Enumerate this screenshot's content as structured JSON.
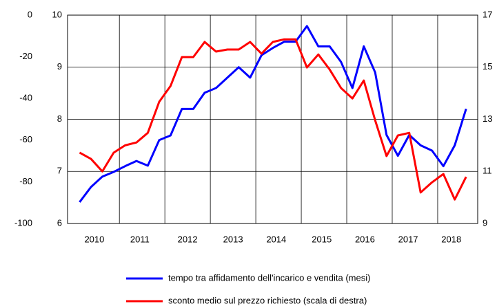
{
  "chart_data": {
    "type": "line",
    "x": [
      2010.125,
      2010.375,
      2010.625,
      2010.875,
      2011.125,
      2011.375,
      2011.625,
      2011.875,
      2012.125,
      2012.375,
      2012.625,
      2012.875,
      2013.125,
      2013.375,
      2013.625,
      2013.875,
      2014.125,
      2014.375,
      2014.625,
      2014.875,
      2015.125,
      2015.375,
      2015.625,
      2015.875,
      2016.125,
      2016.375,
      2016.625,
      2016.875,
      2017.125,
      2017.375,
      2017.625,
      2017.875,
      2018.125,
      2018.375,
      2018.625
    ],
    "xlim": [
      2009.86,
      2018.88
    ],
    "xticks": [
      {
        "value": 2010.45,
        "label": "2010"
      },
      {
        "value": 2011.45,
        "label": "2011"
      },
      {
        "value": 2012.5,
        "label": "2012"
      },
      {
        "value": 2013.5,
        "label": "2013"
      },
      {
        "value": 2014.45,
        "label": "2014"
      },
      {
        "value": 2015.45,
        "label": "2015"
      },
      {
        "value": 2016.4,
        "label": "2016"
      },
      {
        "value": 2017.35,
        "label": "2017"
      },
      {
        "value": 2018.3,
        "label": "2018"
      }
    ],
    "xgrid": [
      2011,
      2012,
      2013,
      2014,
      2015,
      2016,
      2017,
      2018
    ],
    "ylim": [
      6,
      10
    ],
    "yticks": [
      6,
      7,
      8,
      9,
      10
    ],
    "y2lim": [
      9,
      17
    ],
    "y2ticks": [
      9,
      11,
      13,
      15,
      17
    ],
    "y3lim": [
      -100,
      0
    ],
    "y3ticks": [
      -100,
      -80,
      -60,
      -40,
      -20,
      0
    ],
    "grid": true,
    "series": [
      {
        "name": "tempo tra affidamento dell'incarico e vendita (mesi)",
        "color": "#0000ff",
        "values": [
          6.41,
          6.7,
          6.9,
          6.99,
          7.1,
          7.2,
          7.11,
          7.6,
          7.69,
          8.2,
          8.2,
          8.51,
          8.6,
          8.8,
          9.0,
          8.8,
          9.23,
          9.37,
          9.49,
          9.49,
          9.79,
          9.4,
          9.4,
          9.1,
          8.6,
          9.4,
          8.9,
          7.7,
          7.3,
          7.7,
          7.5,
          7.4,
          7.1,
          7.5,
          8.2
        ]
      },
      {
        "name": "sconto medio sul prezzo richiesto (scala di destra)",
        "color": "#ff0000",
        "axis": "y2",
        "values": [
          11.72,
          11.48,
          11.0,
          11.72,
          12.0,
          12.11,
          12.48,
          13.67,
          14.28,
          15.39,
          15.39,
          15.97,
          15.6,
          15.68,
          15.68,
          15.97,
          15.52,
          15.97,
          16.07,
          16.07,
          14.99,
          15.49,
          14.91,
          14.2,
          13.8,
          14.49,
          12.96,
          11.59,
          12.38,
          12.48,
          10.19,
          10.58,
          10.9,
          9.92,
          10.79
        ]
      }
    ]
  }
}
